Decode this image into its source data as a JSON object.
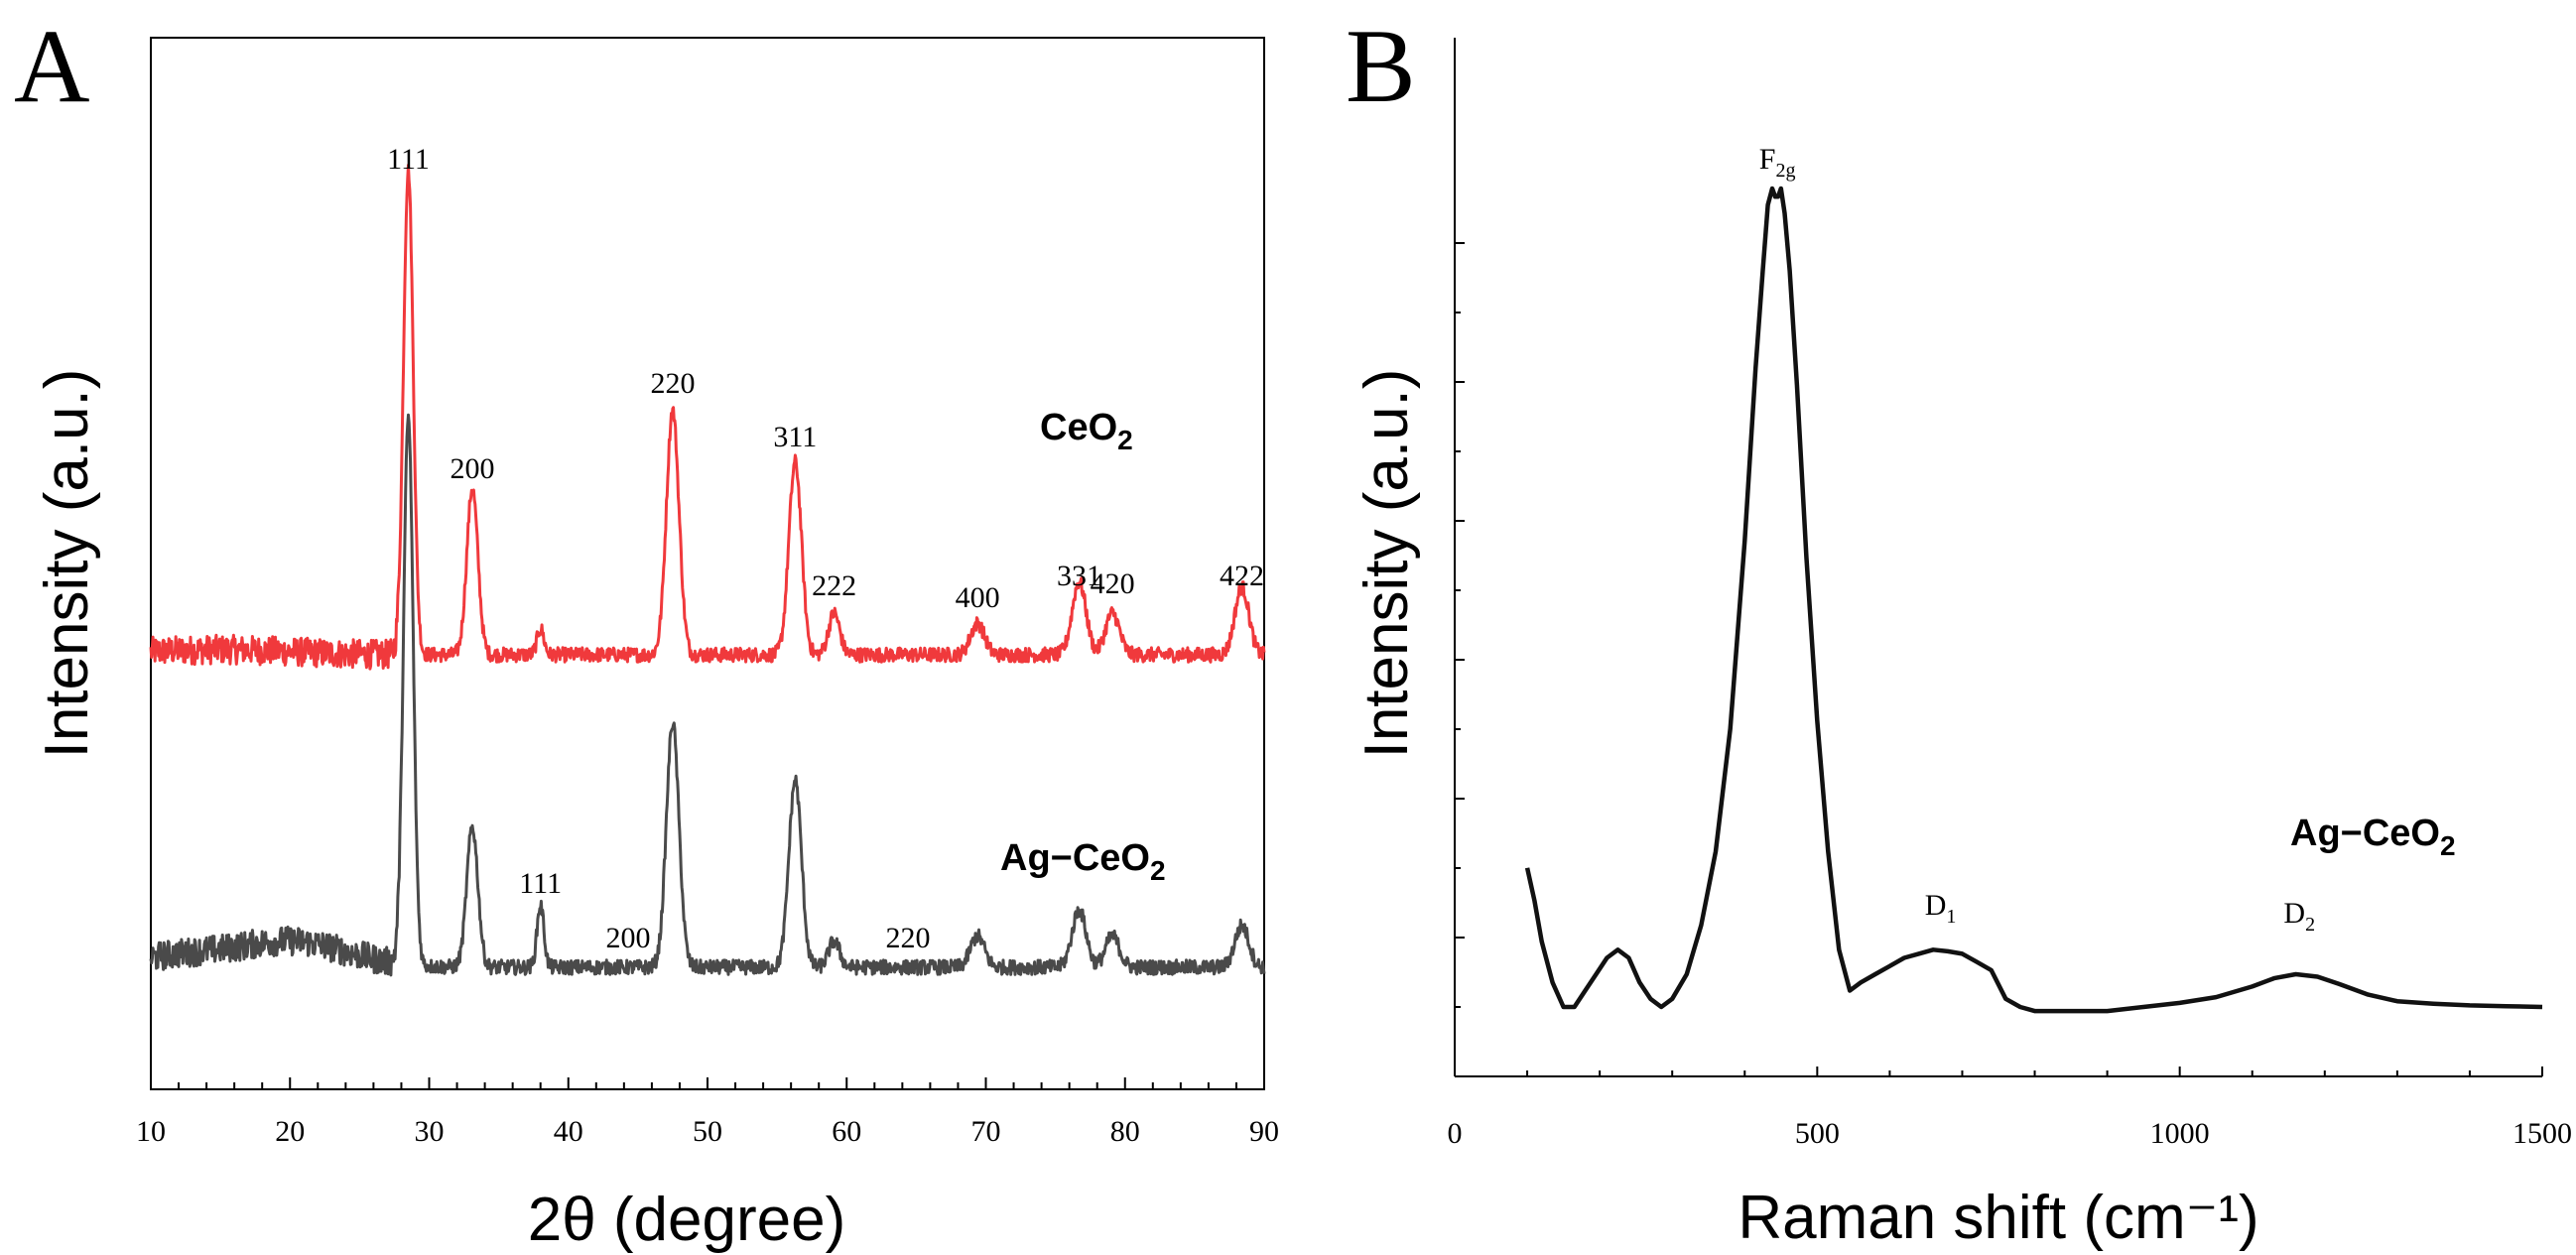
{
  "chart_data": [
    {
      "panel": "A",
      "type": "line",
      "title": "",
      "xlabel": "2θ (degree)",
      "ylabel": "Intensity (a.u.)",
      "xlim": [
        10,
        90
      ],
      "xticks": [
        "10",
        "20",
        "30",
        "40",
        "50",
        "60",
        "70",
        "80",
        "90"
      ],
      "grid": false,
      "series": [
        {
          "name": "CeO₂",
          "label_main": "CeO",
          "label_sub": "2",
          "color": "#f0393c",
          "baseline": 0.43,
          "peaks": [
            {
              "x": 28.5,
              "h": 0.93,
              "w": 0.35
            },
            {
              "x": 33.1,
              "h": 0.32,
              "w": 0.4
            },
            {
              "x": 38.0,
              "h": 0.05,
              "w": 0.25
            },
            {
              "x": 47.5,
              "h": 0.47,
              "w": 0.45
            },
            {
              "x": 56.3,
              "h": 0.37,
              "w": 0.45
            },
            {
              "x": 59.1,
              "h": 0.08,
              "w": 0.4
            },
            {
              "x": 69.4,
              "h": 0.06,
              "w": 0.5
            },
            {
              "x": 76.7,
              "h": 0.14,
              "w": 0.5
            },
            {
              "x": 79.1,
              "h": 0.08,
              "w": 0.5
            },
            {
              "x": 88.4,
              "h": 0.13,
              "w": 0.5
            }
          ]
        },
        {
          "name": "Ag-CeO₂",
          "label_main": "Ag−CeO",
          "label_sub": "2",
          "color": "#4a4a4a",
          "baseline": 0.0,
          "peaks": [
            {
              "x": 28.5,
              "h": 1.05,
              "w": 0.35
            },
            {
              "x": 33.1,
              "h": 0.27,
              "w": 0.4
            },
            {
              "x": 38.0,
              "h": 0.12,
              "w": 0.25
            },
            {
              "x": 47.5,
              "h": 0.47,
              "w": 0.45
            },
            {
              "x": 56.3,
              "h": 0.36,
              "w": 0.45
            },
            {
              "x": 59.1,
              "h": 0.05,
              "w": 0.4
            },
            {
              "x": 69.4,
              "h": 0.06,
              "w": 0.5
            },
            {
              "x": 76.7,
              "h": 0.11,
              "w": 0.5
            },
            {
              "x": 79.1,
              "h": 0.06,
              "w": 0.5
            },
            {
              "x": 88.4,
              "h": 0.08,
              "w": 0.5
            }
          ]
        }
      ],
      "peak_labels": [
        {
          "text": "111",
          "x": 28.5,
          "series": "CeO₂"
        },
        {
          "text": "200",
          "x": 33.1,
          "series": "CeO₂"
        },
        {
          "text": "220",
          "x": 47.5,
          "series": "CeO₂"
        },
        {
          "text": "311",
          "x": 56.3,
          "series": "CeO₂"
        },
        {
          "text": "222",
          "x": 59.1,
          "series": "CeO₂"
        },
        {
          "text": "400",
          "x": 69.4,
          "series": "CeO₂"
        },
        {
          "text": "331",
          "x": 76.7,
          "series": "CeO₂"
        },
        {
          "text": "420",
          "x": 79.1,
          "series": "CeO₂"
        },
        {
          "text": "422",
          "x": 88.4,
          "series": "CeO₂"
        },
        {
          "text": "111",
          "x": 38.0,
          "series": "Ag-CeO₂"
        },
        {
          "text": "200",
          "x": 44.3,
          "series": "Ag-CeO₂"
        },
        {
          "text": "220",
          "x": 64.4,
          "series": "Ag-CeO₂"
        }
      ]
    },
    {
      "panel": "B",
      "type": "line",
      "title": "",
      "xlabel": "Raman shift (cm⁻¹)",
      "ylabel": "Intensity (a.u.)",
      "xlim": [
        0,
        1500
      ],
      "xticks": [
        "0",
        "500",
        "1000",
        "1500"
      ],
      "grid": false,
      "legend_text": "Ag−CeO",
      "legend_sub": "2",
      "color": "#111111",
      "series": [
        {
          "name": "Ag-CeO₂",
          "x": [
            100,
            110,
            120,
            135,
            150,
            165,
            180,
            195,
            210,
            225,
            240,
            255,
            270,
            285,
            300,
            320,
            340,
            360,
            380,
            400,
            415,
            425,
            432,
            438,
            442,
            446,
            450,
            455,
            462,
            472,
            485,
            500,
            515,
            530,
            545,
            560,
            580,
            600,
            620,
            640,
            660,
            680,
            700,
            720,
            740,
            760,
            780,
            800,
            850,
            900,
            950,
            1000,
            1050,
            1100,
            1130,
            1160,
            1190,
            1220,
            1260,
            1300,
            1350,
            1400,
            1450,
            1500
          ],
          "y": [
            0.17,
            0.13,
            0.08,
            0.03,
            0.0,
            0.0,
            0.02,
            0.04,
            0.06,
            0.07,
            0.06,
            0.03,
            0.01,
            0.0,
            0.01,
            0.04,
            0.1,
            0.19,
            0.34,
            0.57,
            0.78,
            0.9,
            0.98,
            1.0,
            0.99,
            0.99,
            1.0,
            0.97,
            0.9,
            0.76,
            0.55,
            0.35,
            0.19,
            0.07,
            0.02,
            0.03,
            0.04,
            0.05,
            0.06,
            0.065,
            0.07,
            0.068,
            0.065,
            0.055,
            0.045,
            0.01,
            0.0,
            -0.005,
            -0.005,
            -0.005,
            0.0,
            0.005,
            0.012,
            0.025,
            0.035,
            0.04,
            0.037,
            0.028,
            0.015,
            0.007,
            0.004,
            0.002,
            0.001,
            0.0
          ]
        }
      ],
      "peak_labels": [
        {
          "text": "F",
          "sub": "2g",
          "x": 445
        },
        {
          "text": "D",
          "sub": "1",
          "x": 670
        },
        {
          "text": "D",
          "sub": "2",
          "x": 1165
        }
      ]
    }
  ],
  "panels": {
    "a_letter": "A",
    "b_letter": "B"
  }
}
